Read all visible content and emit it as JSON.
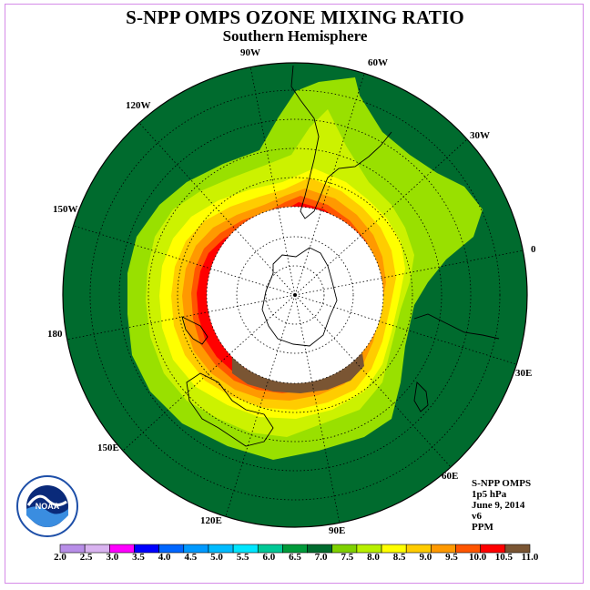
{
  "title": "S-NPP OMPS OZONE MIXING RATIO",
  "subtitle": "Southern Hemisphere",
  "longitude_labels": {
    "w90": "90W",
    "w60": "60W",
    "w30": "30W",
    "lon0": "0",
    "e30": "30E",
    "e60": "60E",
    "e90": "90E",
    "e120": "120E",
    "e150": "150E",
    "lon180": "180",
    "w150": "150W",
    "w120": "120W"
  },
  "info": {
    "product": "S-NPP OMPS",
    "level": "1p5 hPa",
    "date": "June 9, 2014",
    "version": "v6",
    "units": "PPM"
  },
  "logo_text": "NOAA",
  "colorbar": {
    "ticks": [
      "2.0",
      "2.5",
      "3.0",
      "3.5",
      "4.0",
      "4.5",
      "5.0",
      "5.5",
      "6.0",
      "6.5",
      "7.0",
      "7.5",
      "8.0",
      "8.5",
      "9.0",
      "9.5",
      "10.0",
      "10.5",
      "11.0"
    ],
    "colors": [
      "#b88ee8",
      "#d9b3f0",
      "#ff00ff",
      "#0000ff",
      "#0066ff",
      "#0099ff",
      "#00bbff",
      "#00e6ff",
      "#00c896",
      "#009a3a",
      "#006b2e",
      "#7fd100",
      "#b8f000",
      "#ffff00",
      "#ffcc00",
      "#ff9900",
      "#ff5500",
      "#ff0000",
      "#7a5533"
    ]
  },
  "map_colors": {
    "ocean_background": "#006b2e",
    "light_green": "#99e000",
    "yellow_green": "#ccf200",
    "yellow": "#ffff00",
    "gold": "#ffcc00",
    "orange": "#ff9900",
    "dark_orange": "#ff5500",
    "red": "#ff0000",
    "brown": "#7a5533",
    "masked_pole": "#ffffff"
  }
}
